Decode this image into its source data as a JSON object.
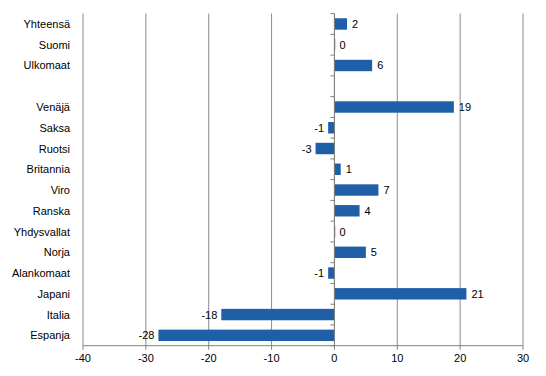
{
  "chart_data": {
    "type": "bar",
    "orientation": "horizontal",
    "categories": [
      "Yhteensä",
      "Suomi",
      "Ulkomaat",
      null,
      "Venäjä",
      "Saksa",
      "Ruotsi",
      "Britannia",
      "Viro",
      "Ranska",
      "Yhdysvallat",
      "Norja",
      "Alankomaat",
      "Japani",
      "Italia",
      "Espanja"
    ],
    "values": [
      2,
      0,
      6,
      null,
      19,
      -1,
      -3,
      1,
      7,
      4,
      0,
      5,
      -1,
      21,
      -18,
      -28
    ],
    "color": "#1f5fa8",
    "xlim": [
      -40,
      30
    ],
    "xticks": [
      -40,
      -30,
      -20,
      -10,
      0,
      10,
      20,
      30
    ],
    "grid": true,
    "data_labels": true
  }
}
